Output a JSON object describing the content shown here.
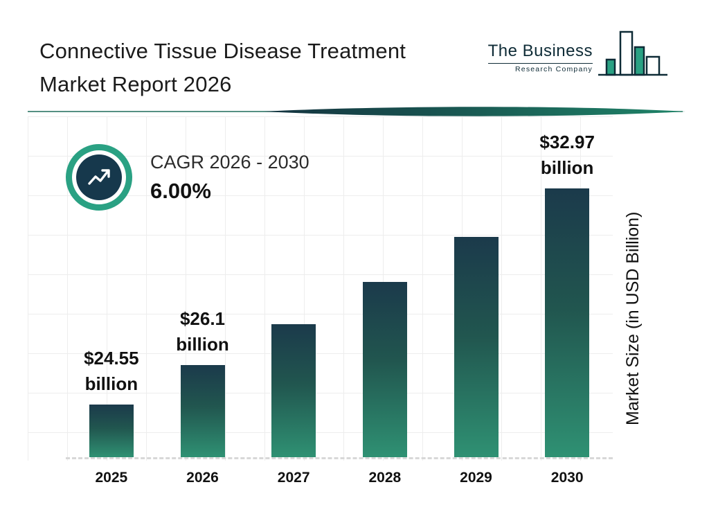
{
  "header": {
    "title_line1": "Connective Tissue Disease Treatment",
    "title_line2": "Market Report 2026"
  },
  "logo": {
    "line1": "The Business",
    "line2": "Research Company"
  },
  "cagr": {
    "label": "CAGR 2026 - 2030",
    "value": "6.00%"
  },
  "chart_data": {
    "type": "bar",
    "title": "Connective Tissue Disease Treatment Market Report 2026",
    "categories": [
      "2025",
      "2026",
      "2027",
      "2028",
      "2029",
      "2030"
    ],
    "values": [
      24.55,
      26.1,
      27.67,
      29.32,
      31.08,
      32.97
    ],
    "bar_labels": [
      {
        "value": "$24.55",
        "unit": "billion"
      },
      {
        "value": "$26.1",
        "unit": "billion"
      },
      null,
      null,
      null,
      {
        "value": "$32.97",
        "unit": "billion"
      }
    ],
    "xlabel": "",
    "ylabel": "Market Size (in USD Billion)",
    "ylim": [
      22.5,
      35.5
    ],
    "grid": true,
    "legend": false,
    "annotation": "CAGR 2026 - 2030: 6.00%",
    "colors": {
      "bar_gradient_top": "#1b3a4b",
      "bar_gradient_bottom": "#2f9173",
      "accent_teal": "#2aa183",
      "icon_circle": "#16384c"
    }
  }
}
